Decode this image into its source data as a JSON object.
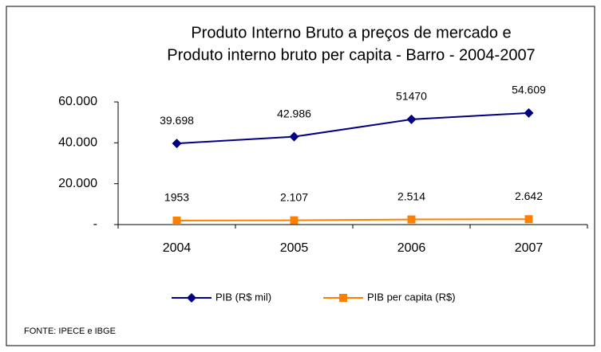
{
  "chart_data": {
    "type": "line",
    "title": [
      "Produto Interno Bruto a preços de mercado  e",
      "Produto interno bruto per capita - Barro - 2004-2007"
    ],
    "categories": [
      "2004",
      "2005",
      "2006",
      "2007"
    ],
    "series": [
      {
        "name": "PIB (R$ mil)",
        "color": "#000080",
        "marker": "diamond",
        "values": [
          39698,
          42986,
          51470,
          54609
        ],
        "value_labels": [
          "39.698",
          "42.986",
          "51470",
          "54.609"
        ]
      },
      {
        "name": "PIB per capita (R$)",
        "color": "#ff8000",
        "marker": "square",
        "values": [
          1953,
          2107,
          2514,
          2642
        ],
        "value_labels": [
          "1953",
          "2.107",
          "2.514",
          "2.642"
        ]
      }
    ],
    "ylim": [
      0,
      60000
    ],
    "yticks": [
      {
        "value": 0,
        "label": "-"
      },
      {
        "value": 20000,
        "label": "20.000"
      },
      {
        "value": 40000,
        "label": "40.000"
      },
      {
        "value": 60000,
        "label": "60.000"
      }
    ],
    "grid": false,
    "legend": "bottom",
    "note": "FONTE: IPECE e IBGE"
  }
}
